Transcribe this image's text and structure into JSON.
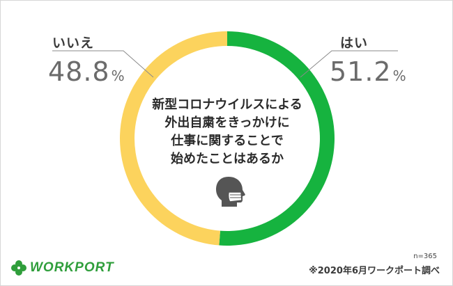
{
  "chart_data": {
    "type": "pie",
    "donut": true,
    "question_lines": [
      "新型コロナウイルスによる",
      "外出自粛をきっかけに",
      "仕事に関することで",
      "始めたことはあるか"
    ],
    "slices": [
      {
        "label": "はい",
        "value": 51.2,
        "color": "#16b33f"
      },
      {
        "label": "いいえ",
        "value": 48.8,
        "color": "#fcd35d"
      }
    ],
    "unit": "%",
    "sample": "n=365",
    "source": "※2020年6月ワークポート調べ"
  },
  "brand": {
    "name": "WORKPORT",
    "color": "#2f9e3b"
  },
  "icons": {
    "center": "masked-person-icon",
    "logo": "clover-icon"
  }
}
